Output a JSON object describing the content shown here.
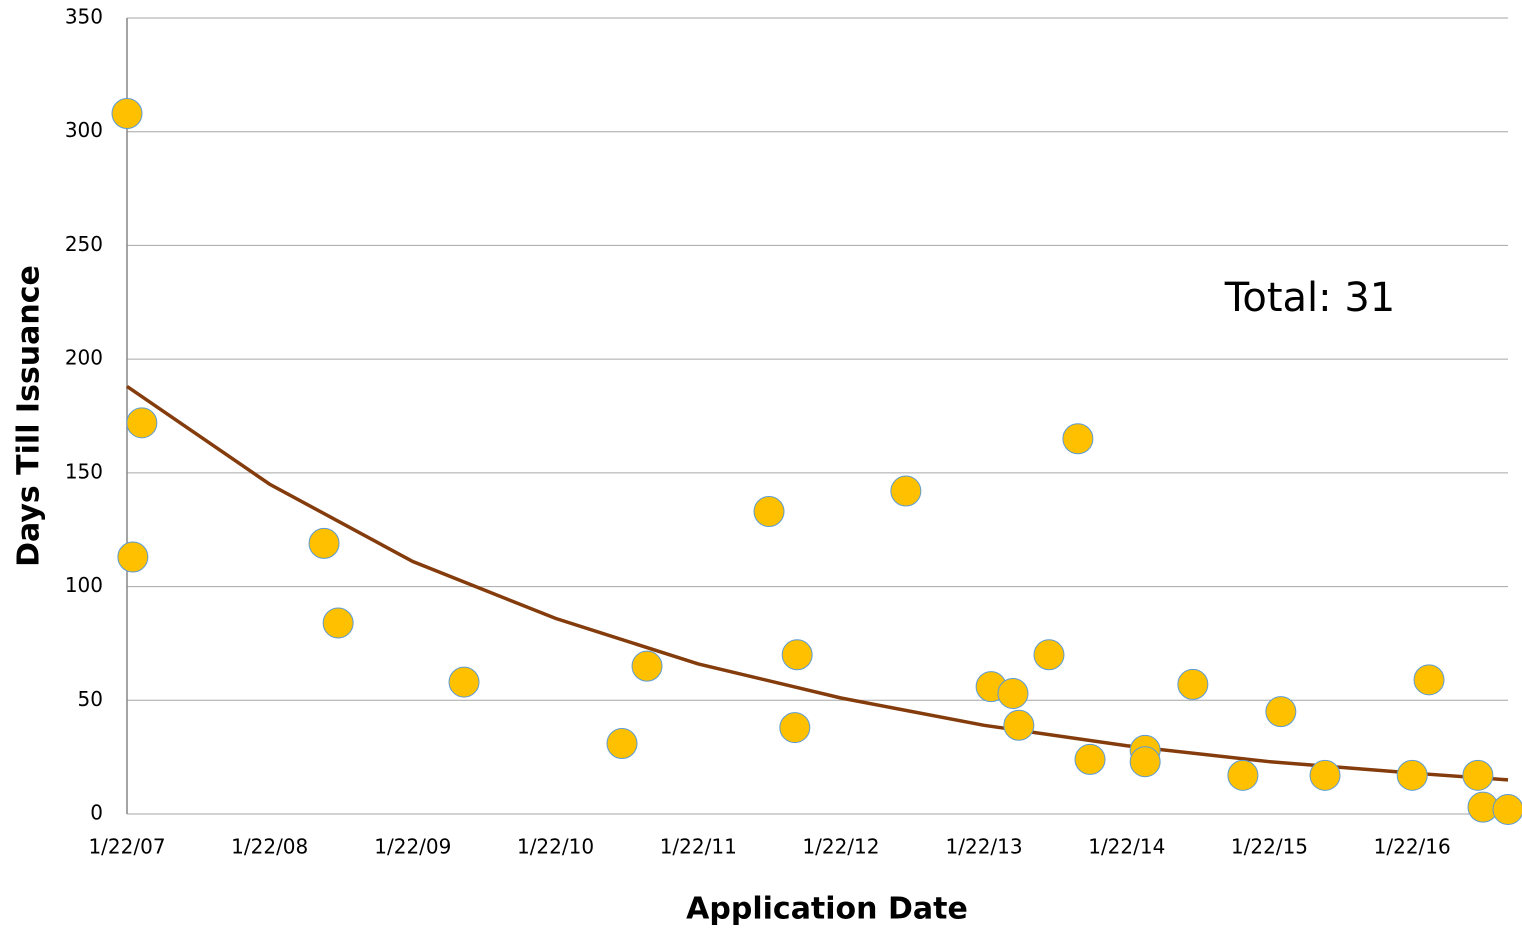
{
  "chart_data": {
    "type": "scatter",
    "x_label": "Application Date",
    "y_label": "Days Till Issuance",
    "annotation": "Total: 31",
    "x": [
      39104,
      39119,
      39142,
      39608,
      39644,
      39966,
      40370,
      40434,
      40746,
      40812,
      40818,
      41096,
      41314,
      41370,
      41385,
      41462,
      41536,
      41567,
      41708,
      41708,
      41830,
      41958,
      42055,
      42168,
      42391,
      42434,
      42559,
      42572,
      42636
    ],
    "values": [
      308,
      113,
      172,
      119,
      84,
      58,
      31,
      65,
      133,
      38,
      70,
      142,
      56,
      53,
      39,
      70,
      165,
      24,
      28,
      23,
      57,
      17,
      45,
      17,
      17,
      59,
      17,
      3,
      2
    ],
    "color": "#ffc000",
    "edge_color": "#5b9bd5",
    "trendline": {
      "type": "exponential",
      "color": "#843c0c",
      "x": [
        39104,
        39469,
        39835,
        40200,
        40565,
        40930,
        41296,
        41661,
        42026,
        42391,
        42636
      ],
      "values": [
        188,
        145,
        111,
        86,
        66,
        51,
        39,
        30,
        23,
        18,
        15
      ]
    },
    "xlim": [
      39104,
      42636
    ],
    "xticks": [
      {
        "value": 39104,
        "label": "1/22/07"
      },
      {
        "value": 39469,
        "label": "1/22/08"
      },
      {
        "value": 39835,
        "label": "1/22/09"
      },
      {
        "value": 40200,
        "label": "1/22/10"
      },
      {
        "value": 40565,
        "label": "1/22/11"
      },
      {
        "value": 40930,
        "label": "1/22/12"
      },
      {
        "value": 41296,
        "label": "1/22/13"
      },
      {
        "value": 41661,
        "label": "1/22/14"
      },
      {
        "value": 42026,
        "label": "1/22/15"
      },
      {
        "value": 42391,
        "label": "1/22/16"
      }
    ],
    "ylim": [
      0,
      350
    ],
    "yticks": [
      0,
      50,
      100,
      150,
      200,
      250,
      300,
      350
    ],
    "grid": true
  }
}
